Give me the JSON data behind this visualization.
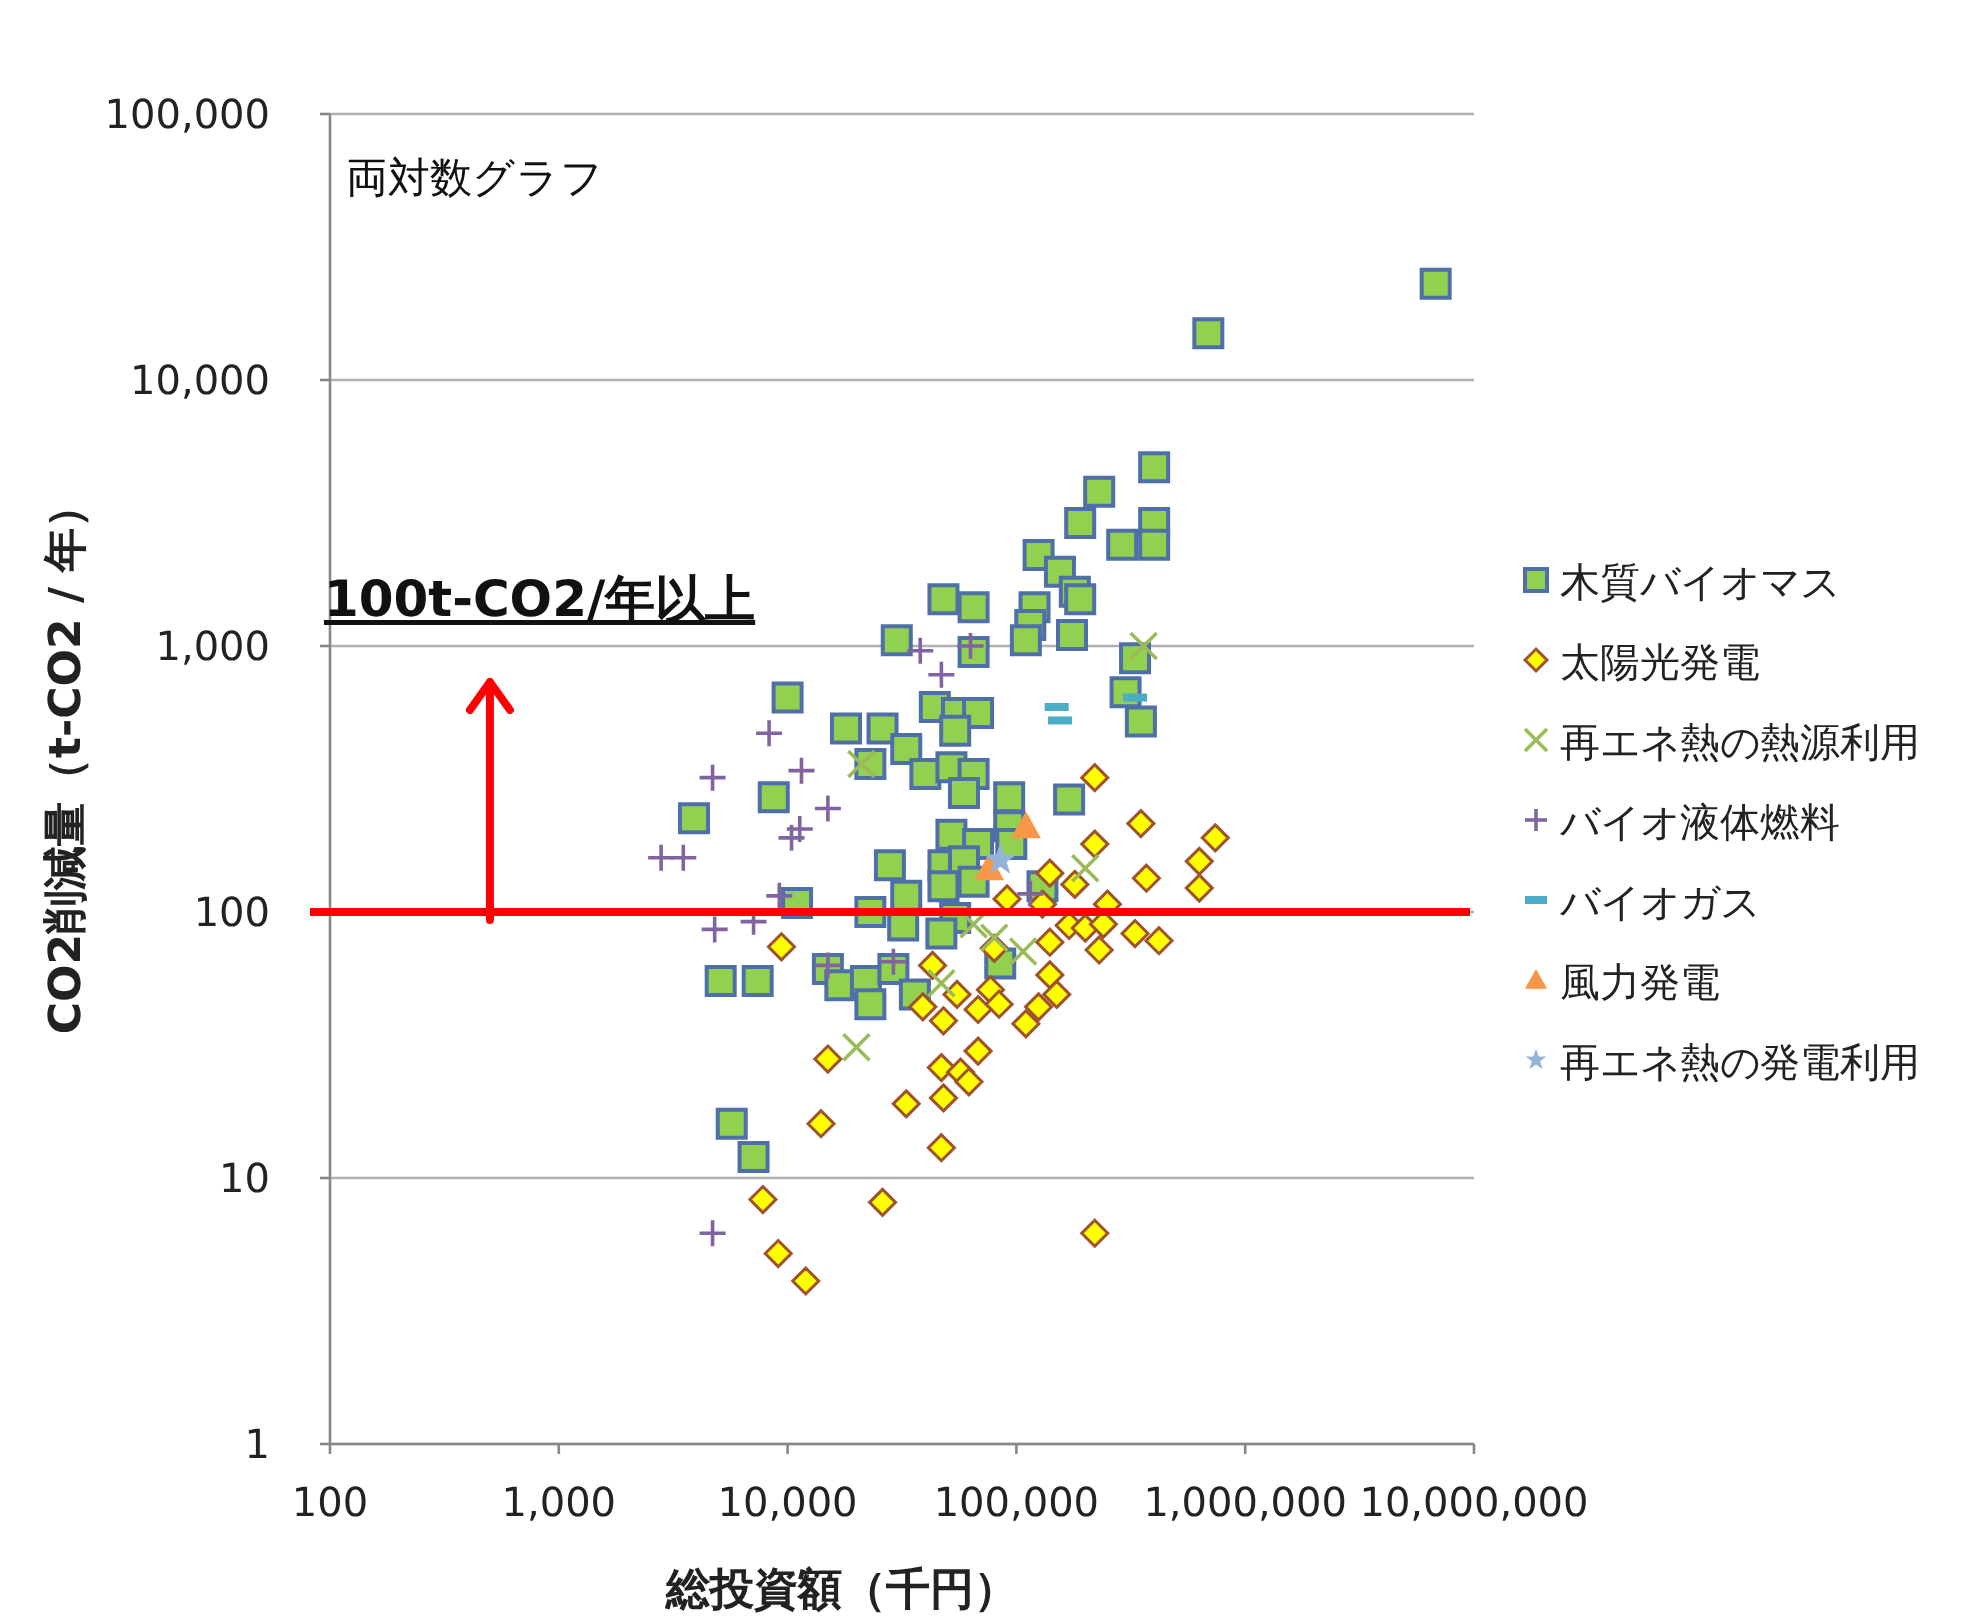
{
  "chart_data": {
    "type": "scatter",
    "xlabel": "総投資額（千円）",
    "ylabel": "CO2削減量（t-CO2 / 年）",
    "annotations": [
      "両対数グラフ",
      {
        "text": "100t-CO2/年以上",
        "x": 500,
        "y": 100
      }
    ],
    "log": "xy",
    "grid": "y",
    "legend": "right",
    "xlim": [
      100,
      10000000
    ],
    "ylim": [
      1,
      100000
    ],
    "xticks": [
      100,
      {
        "value": 1000,
        "label": "1,000"
      },
      {
        "value": 10000,
        "label": "10,000"
      },
      {
        "value": 100000,
        "label": "100,000"
      },
      {
        "value": 1000000,
        "label": "1,000,000"
      },
      {
        "value": 10000000,
        "label": "10,000,000"
      }
    ],
    "yticks": [
      1,
      10,
      100,
      {
        "value": 1000,
        "label": "1,000"
      },
      {
        "value": 10000,
        "label": "10,000"
      },
      {
        "value": 100000,
        "label": "100,000"
      }
    ],
    "ref_lines": [
      {
        "axis": "y",
        "value": 100,
        "color": "#ff0000"
      }
    ],
    "series": [
      {
        "name": "木質バイオマス",
        "color": "#92d050",
        "marker": "square",
        "x": [
          6800000,
          690000,
          400000,
          230000,
          190000,
          400000,
          400000,
          290000,
          125000,
          155000,
          180000,
          190000,
          120000,
          48000,
          65000,
          115000,
          110000,
          175000,
          30000,
          65000,
          330000,
          300000,
          350000,
          10000,
          44000,
          55000,
          68000,
          54000,
          18000,
          26000,
          33000,
          40000,
          52000,
          65000,
          59000,
          23000,
          8700,
          3900,
          93000,
          170000,
          52000,
          93000,
          68000,
          28000,
          48000,
          59000,
          95000,
          33000,
          48000,
          65000,
          130000,
          11000,
          23000,
          32000,
          54000,
          47000,
          85000,
          5100,
          7400,
          15000,
          17000,
          22000,
          23000,
          29000,
          36000,
          5700,
          7100
        ],
        "values": [
          23000,
          15000,
          4700,
          3800,
          2900,
          2900,
          2400,
          2400,
          2200,
          1900,
          1600,
          1500,
          1400,
          1500,
          1400,
          1200,
          1050,
          1100,
          1050,
          950,
          900,
          670,
          520,
          640,
          590,
          560,
          560,
          480,
          490,
          490,
          410,
          330,
          350,
          330,
          280,
          360,
          270,
          225,
          270,
          265,
          195,
          210,
          180,
          150,
          150,
          155,
          180,
          115,
          125,
          130,
          125,
          108,
          100,
          89,
          95,
          83,
          64,
          55,
          55,
          61,
          53,
          55,
          45,
          61,
          49,
          16,
          12
        ]
      },
      {
        "name": "太陽光発電",
        "color": "#ffff00",
        "marker": "diamond",
        "x": [
          220000,
          350000,
          740000,
          220000,
          140000,
          180000,
          370000,
          630000,
          630000,
          91000,
          130000,
          250000,
          170000,
          200000,
          240000,
          330000,
          420000,
          140000,
          230000,
          80000,
          43000,
          140000,
          150000,
          77000,
          55000,
          84000,
          125000,
          110000,
          68000,
          39000,
          48000,
          68000,
          47000,
          57000,
          62000,
          15000,
          48000,
          33000,
          14000,
          47000,
          7800,
          26000,
          9100,
          220000,
          9400,
          12000
        ],
        "values": [
          320,
          215,
          190,
          180,
          140,
          127,
          134,
          155,
          123,
          112,
          107,
          107,
          89,
          87,
          90,
          83,
          78,
          77,
          72,
          73,
          63,
          58,
          49,
          51,
          49,
          45,
          44,
          38,
          43,
          44,
          39,
          30,
          26,
          25,
          23,
          28,
          20,
          19,
          16,
          13,
          8.3,
          8.1,
          5.2,
          6.2,
          74,
          4.1
        ]
      },
      {
        "name": "再エネ熱の熱源利用",
        "color": "#9bbb59",
        "marker": "cross",
        "x": [
          360000,
          21000,
          200000,
          65000,
          80000,
          107000,
          47000,
          20000
        ],
        "values": [
          1000,
          360,
          146,
          90,
          80,
          71,
          54,
          31
        ]
      },
      {
        "name": "バイオ液体燃料",
        "color": "#8064a2",
        "marker": "plus",
        "x": [
          38000,
          63000,
          47000,
          8300,
          4700,
          11500,
          15000,
          11300,
          10400,
          2800,
          3500,
          9200,
          null,
          4800,
          7100,
          15000,
          29000,
          115000,
          4700
        ],
        "values": [
          960,
          1000,
          780,
          470,
          320,
          340,
          245,
          205,
          190,
          160,
          160,
          115,
          null,
          86,
          92,
          63,
          65,
          117,
          6.2
        ]
      },
      {
        "name": "バイオガス",
        "color": "#4bacc6",
        "x": [
          150000,
          155000,
          330000
        ],
        "values": [
          590,
          525,
          640
        ]
      },
      {
        "name": "風力発電",
        "color": "#f79646",
        "marker": "triangle",
        "x": [
          110000,
          76000
        ],
        "values": [
          210,
          146
        ]
      },
      {
        "name": "再エネ熱の発電利用",
        "color": "#95b3d7",
        "marker": "star",
        "x": [
          85000
        ],
        "values": [
          157
        ]
      }
    ]
  }
}
